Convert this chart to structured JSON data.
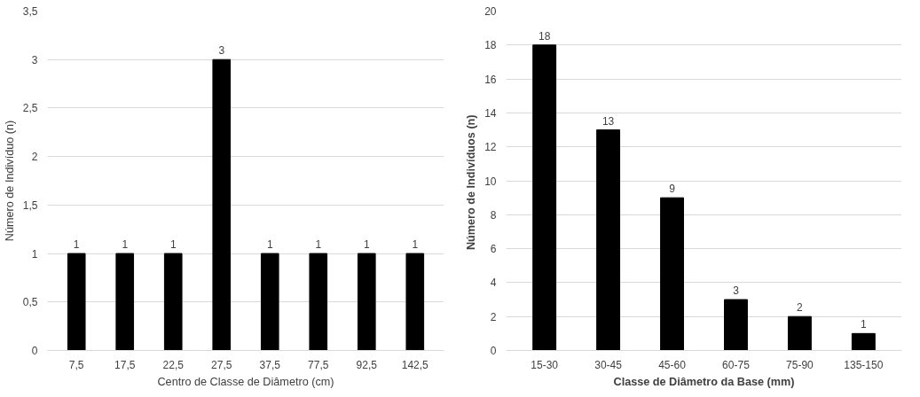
{
  "chart_data": [
    {
      "type": "bar",
      "xlabel": "Centro de Classe de Diâmetro (cm)",
      "ylabel": "Número de Indivíduo (n)",
      "categories": [
        "7,5",
        "17,5",
        "22,5",
        "27,5",
        "37,5",
        "77,5",
        "92,5",
        "142,5"
      ],
      "values": [
        1,
        1,
        1,
        3,
        1,
        1,
        1,
        1
      ],
      "color": "#000000",
      "ylim": [
        0,
        3.5
      ],
      "yticks": [
        0,
        {
          "value": 0.5,
          "label": "0,5"
        },
        1,
        {
          "value": 1.5,
          "label": "1,5"
        },
        2,
        {
          "value": 2.5,
          "label": "2,5"
        },
        3,
        {
          "value": 3.5,
          "label": "3,5"
        }
      ],
      "grid": "y",
      "data_labels": true
    },
    {
      "type": "bar",
      "xlabel": "Classe de Diâmetro da Base (mm)",
      "ylabel": "Número de Indivíduos  (n)",
      "categories": [
        "15-30",
        "30-45",
        "45-60",
        "60-75",
        "75-90",
        "135-150"
      ],
      "values": [
        18,
        13,
        9,
        3,
        2,
        1
      ],
      "color": "#000000",
      "ylim": [
        0,
        20
      ],
      "yticks": [
        0,
        2,
        4,
        6,
        8,
        10,
        12,
        14,
        16,
        18,
        20
      ],
      "grid": "y",
      "data_labels": true
    }
  ]
}
